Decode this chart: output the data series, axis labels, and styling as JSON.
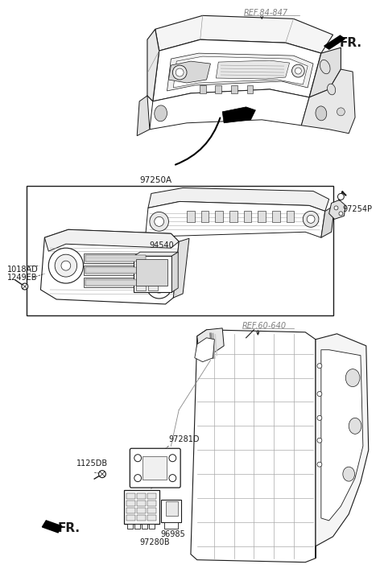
{
  "background_color": "#ffffff",
  "line_color": "#1a1a1a",
  "gray_color": "#808080",
  "fig_width": 4.72,
  "fig_height": 7.27,
  "dpi": 100,
  "labels": {
    "ref_84_847": "REF.84-847",
    "FR_top": "FR.",
    "part_97250A": "97250A",
    "part_1018AD": "1018AD",
    "part_1249EB": "1249EB",
    "part_94540": "94540",
    "part_97254P": "97254P",
    "ref_60_640": "REF.60-640",
    "part_97281D": "97281D",
    "part_1125DB": "1125DB",
    "FR_bottom": "FR.",
    "part_96985": "96985",
    "part_97280B": "97280B"
  }
}
